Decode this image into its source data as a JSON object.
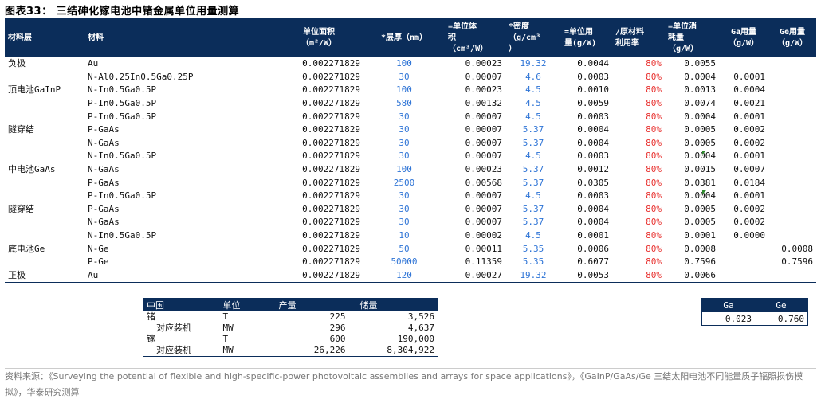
{
  "title": "图表33： 三结砷化镓电池中锗金属单位用量测算",
  "headers": {
    "layer": "材料层",
    "material": "材料",
    "area": "单位面积\n（m²/W）",
    "thickness": "*层厚（nm）",
    "volume": "=单位体\n积\n（cm³/W）",
    "density": "*密度\n（g/cm³\n）",
    "usage": "=单位用\n量(g/W)",
    "utilization": "/原材料\n利用率",
    "consumption": "=单位消\n耗量\n（g/W）",
    "ga": "Ga用量\n（g/W）",
    "ge": "Ge用量\n（g/W）"
  },
  "rows": [
    {
      "layer": "负极",
      "material": "Au",
      "area": "0.002271829",
      "thickness": "100",
      "volume": "0.00023",
      "density": "19.32",
      "usage": "0.0044",
      "utilization": "80%",
      "consumption": "0.0055",
      "ga": "",
      "ge": ""
    },
    {
      "layer": "",
      "material": "N-Al0.25In0.5Ga0.25P",
      "area": "0.002271829",
      "thickness": "30",
      "volume": "0.00007",
      "density": "4.6",
      "usage": "0.0003",
      "utilization": "80%",
      "consumption": "0.0004",
      "ga": "0.0001",
      "ge": ""
    },
    {
      "layer": "顶电池GaInP",
      "material": "N-In0.5Ga0.5P",
      "area": "0.002271829",
      "thickness": "100",
      "volume": "0.00023",
      "density": "4.5",
      "usage": "0.0010",
      "utilization": "80%",
      "consumption": "0.0013",
      "ga": "0.0004",
      "ge": ""
    },
    {
      "layer": "",
      "material": "P-In0.5Ga0.5P",
      "area": "0.002271829",
      "thickness": "580",
      "volume": "0.00132",
      "density": "4.5",
      "usage": "0.0059",
      "utilization": "80%",
      "consumption": "0.0074",
      "ga": "0.0021",
      "ge": ""
    },
    {
      "layer": "",
      "material": "P-In0.5Ga0.5P",
      "area": "0.002271829",
      "thickness": "30",
      "volume": "0.00007",
      "density": "4.5",
      "usage": "0.0003",
      "utilization": "80%",
      "consumption": "0.0004",
      "ga": "0.0001",
      "ge": ""
    },
    {
      "layer": "隧穿结",
      "material": "P-GaAs",
      "area": "0.002271829",
      "thickness": "30",
      "volume": "0.00007",
      "density": "5.37",
      "usage": "0.0004",
      "utilization": "80%",
      "consumption": "0.0005",
      "ga": "0.0002",
      "ge": ""
    },
    {
      "layer": "",
      "material": "N-GaAs",
      "area": "0.002271829",
      "thickness": "30",
      "volume": "0.00007",
      "density": "5.37",
      "usage": "0.0004",
      "utilization": "80%",
      "consumption": "0.0005",
      "ga": "0.0002",
      "ge": ""
    },
    {
      "layer": "",
      "material": "N-In0.5Ga0.5P",
      "area": "0.002271829",
      "thickness": "30",
      "volume": "0.00007",
      "density": "4.5",
      "usage": "0.0003",
      "utilization": "80%",
      "consumption": "0.0004",
      "ga": "0.0001",
      "ge": ""
    },
    {
      "layer": "中电池GaAs",
      "material": "N-GaAs",
      "area": "0.002271829",
      "thickness": "100",
      "volume": "0.00023",
      "density": "5.37",
      "usage": "0.0012",
      "utilization": "80%",
      "consumption": "0.0015",
      "ga": "0.0007",
      "ge": ""
    },
    {
      "layer": "",
      "material": "P-GaAs",
      "area": "0.002271829",
      "thickness": "2500",
      "volume": "0.00568",
      "density": "5.37",
      "usage": "0.0305",
      "utilization": "80%",
      "consumption": "0.0381",
      "ga": "0.0184",
      "ge": ""
    },
    {
      "layer": "",
      "material": "P-In0.5Ga0.5P",
      "area": "0.002271829",
      "thickness": "30",
      "volume": "0.00007",
      "density": "4.5",
      "usage": "0.0003",
      "utilization": "80%",
      "consumption": "0.0004",
      "ga": "0.0001",
      "ge": ""
    },
    {
      "layer": "隧穿结",
      "material": "P-GaAs",
      "area": "0.002271829",
      "thickness": "30",
      "volume": "0.00007",
      "density": "5.37",
      "usage": "0.0004",
      "utilization": "80%",
      "consumption": "0.0005",
      "ga": "0.0002",
      "ge": ""
    },
    {
      "layer": "",
      "material": "N-GaAs",
      "area": "0.002271829",
      "thickness": "30",
      "volume": "0.00007",
      "density": "5.37",
      "usage": "0.0004",
      "utilization": "80%",
      "consumption": "0.0005",
      "ga": "0.0002",
      "ge": ""
    },
    {
      "layer": "",
      "material": "N-In0.5Ga0.5P",
      "area": "0.002271829",
      "thickness": "10",
      "volume": "0.00002",
      "density": "4.5",
      "usage": "0.0001",
      "utilization": "80%",
      "consumption": "0.0001",
      "ga": "0.0000",
      "ge": ""
    },
    {
      "layer": "底电池Ge",
      "material": "N-Ge",
      "area": "0.002271829",
      "thickness": "50",
      "volume": "0.00011",
      "density": "5.35",
      "usage": "0.0006",
      "utilization": "80%",
      "consumption": "0.0008",
      "ga": "",
      "ge": "0.0008"
    },
    {
      "layer": "",
      "material": "P-Ge",
      "area": "0.002271829",
      "thickness": "50000",
      "volume": "0.11359",
      "density": "5.35",
      "usage": "0.6077",
      "utilization": "80%",
      "consumption": "0.7596",
      "ga": "",
      "ge": "0.7596"
    },
    {
      "layer": "正极",
      "material": "Au",
      "area": "0.002271829",
      "thickness": "120",
      "volume": "0.00027",
      "density": "19.32",
      "usage": "0.0053",
      "utilization": "80%",
      "consumption": "0.0066",
      "ga": "",
      "ge": ""
    }
  ],
  "production_table": {
    "headers": [
      "中国",
      "单位",
      "产量",
      "储量"
    ],
    "rows": [
      [
        "锗",
        "T",
        "225",
        "3,526"
      ],
      [
        "对应装机",
        "MW",
        "296",
        "4,637"
      ],
      [
        "镓",
        "T",
        "600",
        "190,000"
      ],
      [
        "对应装机",
        "MW",
        "26,226",
        "8,304,922"
      ]
    ]
  },
  "ratio_table": {
    "headers": [
      "Ga",
      "Ge"
    ],
    "values": [
      "0.023",
      "0.760"
    ]
  },
  "source": "资料来源：《Surveying the potential of flexible and high-specific-power photovoltaic assemblies and arrays for space applications》，《GaInP/GaAs/Ge 三结太阳电池不同能量质子辐照损伤模拟》，华泰研究测算",
  "colors": {
    "header_bg": "#0b2d5a",
    "blue": "#2e74d6",
    "red": "#e8312f"
  }
}
